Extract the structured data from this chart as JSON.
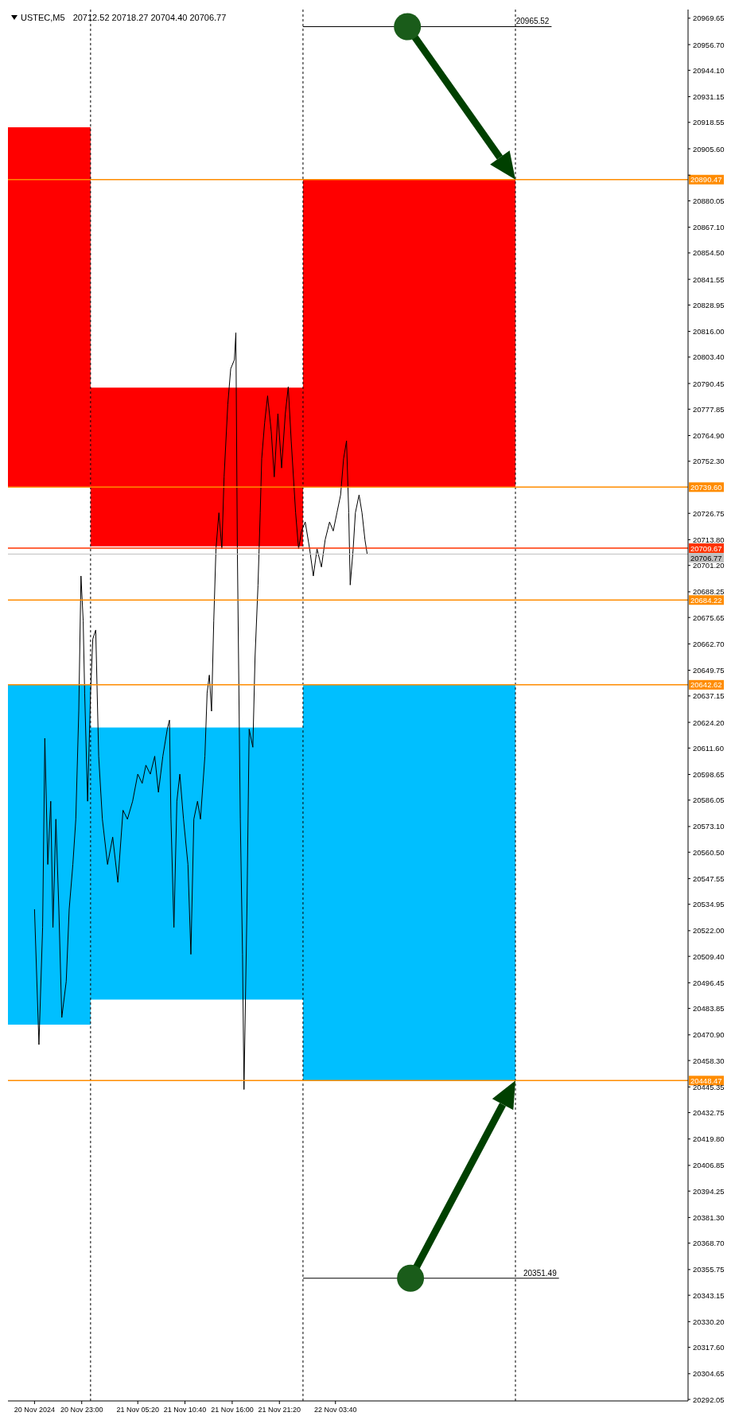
{
  "chart_data": {
    "type": "line",
    "title": "USTEC,M5",
    "subtitle": "20712.52 20718.27 20704.40 20706.77",
    "xlim": [
      "2024-11-20T14:40",
      "2024-11-23T19:30"
    ],
    "ylim": [
      20291.3,
      20973.9
    ],
    "xticks": [
      {
        "value": "2024-11-20T17:40",
        "label": "20 Nov 2024"
      },
      {
        "value": "2024-11-20T23:00",
        "label": "20 Nov 23:00"
      },
      {
        "value": "2024-11-21T05:20",
        "label": "21 Nov 05:20"
      },
      {
        "value": "2024-11-21T10:40",
        "label": "21 Nov 10:40"
      },
      {
        "value": "2024-11-21T16:00",
        "label": "21 Nov 16:00"
      },
      {
        "value": "2024-11-21T21:20",
        "label": "21 Nov 21:20"
      },
      {
        "value": "2024-11-22T03:40",
        "label": "22 Nov 03:40"
      }
    ],
    "yticks": [
      20969.65,
      {
        "value": 20956.7,
        "label": "20956.70"
      },
      {
        "value": 20944.1,
        "label": "20944.10"
      },
      20931.15,
      20918.55,
      {
        "value": 20905.6,
        "label": "20905.60"
      },
      {
        "value": 20892.65,
        "label": null
      },
      20880.05,
      {
        "value": 20867.1,
        "label": "20867.10"
      },
      {
        "value": 20854.5,
        "label": "20854.50"
      },
      20841.55,
      20828.95,
      {
        "value": 20816,
        "label": "20816.00"
      },
      {
        "value": 20803.4,
        "label": "20803.40"
      },
      20790.45,
      20777.85,
      {
        "value": 20764.9,
        "label": "20764.90"
      },
      {
        "value": 20752.3,
        "label": "20752.30"
      },
      20726.75,
      {
        "value": 20713.8,
        "label": "20713.80"
      },
      {
        "value": 20701.2,
        "label": "20701.20"
      },
      20688.25,
      20675.65,
      {
        "value": 20662.7,
        "label": "20662.70"
      },
      20649.75,
      20637.15,
      {
        "value": 20624.2,
        "label": "20624.20"
      },
      {
        "value": 20611.6,
        "label": "20611.60"
      },
      20598.65,
      20586.05,
      {
        "value": 20573.1,
        "label": "20573.10"
      },
      {
        "value": 20560.5,
        "label": "20560.50"
      },
      20547.55,
      20534.95,
      {
        "value": 20522,
        "label": "20522.00"
      },
      {
        "value": 20509.4,
        "label": "20509.40"
      },
      20496.45,
      20483.85,
      {
        "value": 20470.9,
        "label": "20470.90"
      },
      {
        "value": 20458.3,
        "label": "20458.30"
      },
      20445.35,
      20432.75,
      {
        "value": 20419.8,
        "label": "20419.80"
      },
      20406.85,
      20394.25,
      {
        "value": 20381.3,
        "label": "20381.30"
      },
      {
        "value": 20368.7,
        "label": "20368.70"
      },
      20355.75,
      20343.15,
      {
        "value": 20330.2,
        "label": "20330.20"
      },
      {
        "value": 20317.6,
        "label": "20317.60"
      },
      20304.65,
      20292.05
    ],
    "grid": false,
    "legend": false,
    "marker": "none",
    "series": [
      {
        "color": "#ff0000",
        "x": [
          "2024-11-20T14:40",
          "2024-11-21T00:00"
        ],
        "values": [
          null,
          null
        ],
        "lower": [
          20739.6,
          20739.6
        ],
        "upper": [
          20916.1,
          20916.1
        ]
      },
      {
        "color": "#ff0000",
        "x": [
          "2024-11-21T00:00",
          "2024-11-22T00:00"
        ],
        "values": [
          null,
          null
        ],
        "lower": [
          20710.6,
          20710.6
        ],
        "upper": [
          20788.4,
          20788.4
        ]
      },
      {
        "color": "#ff0000",
        "x": [
          "2024-11-22T00:00",
          "2024-11-23T00:00"
        ],
        "values": [
          null,
          null
        ],
        "lower": [
          20739.6,
          20739.6
        ],
        "upper": [
          20890.47,
          20890.47
        ]
      },
      {
        "color": "#00bfff",
        "x": [
          "2024-11-20T14:40",
          "2024-11-21T00:00"
        ],
        "values": [
          null,
          null
        ],
        "lower": [
          20475.9,
          20475.9
        ],
        "upper": [
          20642.62,
          20642.62
        ]
      },
      {
        "color": "#00bfff",
        "x": [
          "2024-11-21T00:00",
          "2024-11-22T00:00"
        ],
        "values": [
          null,
          null
        ],
        "lower": [
          20488.2,
          20488.2
        ],
        "upper": [
          20621.7,
          20621.7
        ]
      },
      {
        "color": "#00bfff",
        "x": [
          "2024-11-22T00:00",
          "2024-11-23T00:00"
        ],
        "values": [
          null,
          null
        ],
        "lower": [
          20448.47,
          20448.47
        ],
        "upper": [
          20642.62,
          20642.62
        ]
      },
      {
        "color": "#000000",
        "x": [
          "2024-11-22T00:00",
          "2024-11-23T04:05"
        ],
        "values": [
          20965.52,
          20965.52
        ],
        "value_labels": [
          null,
          "20965.52"
        ]
      },
      {
        "color": "#000000",
        "x": [
          "2024-11-22T00:00",
          "2024-11-23T04:55"
        ],
        "values": [
          20351.49,
          20351.49
        ],
        "value_labels": [
          null,
          "20351.49"
        ]
      },
      {
        "color": "#000000",
        "x": [
          "2024-11-20T17:40",
          "2024-11-20T18:10",
          "2024-11-20T18:35",
          "2024-11-20T18:50",
          "2024-11-20T19:10",
          "2024-11-20T19:30",
          "2024-11-20T19:45",
          "2024-11-20T20:05",
          "2024-11-20T20:25",
          "2024-11-20T20:45",
          "2024-11-20T21:15",
          "2024-11-20T21:35",
          "2024-11-20T22:00",
          "2024-11-20T22:20",
          "2024-11-20T22:40",
          "2024-11-20T22:55",
          "2024-11-20T23:10",
          "2024-11-20T23:20",
          "2024-11-20T23:40",
          "2024-11-21T00:00",
          "2024-11-21T00:15",
          "2024-11-21T00:35",
          "2024-11-21T00:55",
          "2024-11-21T01:20",
          "2024-11-21T01:55",
          "2024-11-21T02:30",
          "2024-11-21T03:05",
          "2024-11-21T03:40",
          "2024-11-21T04:10",
          "2024-11-21T04:45",
          "2024-11-21T05:20",
          "2024-11-21T05:50",
          "2024-11-21T06:15",
          "2024-11-21T06:45",
          "2024-11-21T07:15",
          "2024-11-21T07:40",
          "2024-11-21T08:10",
          "2024-11-21T08:40",
          "2024-11-21T08:55",
          "2024-11-21T09:05",
          "2024-11-21T09:25",
          "2024-11-21T09:45",
          "2024-11-21T10:05",
          "2024-11-21T10:30",
          "2024-11-21T11:00",
          "2024-11-21T11:20",
          "2024-11-21T11:40",
          "2024-11-21T12:05",
          "2024-11-21T12:25",
          "2024-11-21T12:55",
          "2024-11-21T13:10",
          "2024-11-21T13:25",
          "2024-11-21T13:40",
          "2024-11-21T13:55",
          "2024-11-21T14:10",
          "2024-11-21T14:30",
          "2024-11-21T14:50",
          "2024-11-21T15:05",
          "2024-11-21T15:30",
          "2024-11-21T15:50",
          "2024-11-21T16:15",
          "2024-11-21T16:25",
          "2024-11-21T16:35",
          "2024-11-21T16:55",
          "2024-11-21T17:10",
          "2024-11-21T17:20",
          "2024-11-21T17:40",
          "2024-11-21T17:55",
          "2024-11-21T18:20",
          "2024-11-21T18:35",
          "2024-11-21T18:55",
          "2024-11-21T19:10",
          "2024-11-21T19:20",
          "2024-11-21T19:40",
          "2024-11-21T20:00",
          "2024-11-21T20:25",
          "2024-11-21T20:45",
          "2024-11-21T21:10",
          "2024-11-21T21:35",
          "2024-11-21T22:00",
          "2024-11-21T22:20",
          "2024-11-21T22:40",
          "2024-11-21T23:10",
          "2024-11-21T23:30",
          "2024-11-21T23:50",
          "2024-11-22T00:15",
          "2024-11-22T00:45",
          "2024-11-22T01:10",
          "2024-11-22T01:35",
          "2024-11-22T02:05",
          "2024-11-22T02:30",
          "2024-11-22T03:00",
          "2024-11-22T03:25",
          "2024-11-22T03:50",
          "2024-11-22T04:15",
          "2024-11-22T04:35",
          "2024-11-22T04:55",
          "2024-11-22T05:10",
          "2024-11-22T05:20",
          "2024-11-22T05:40",
          "2024-11-22T05:55",
          "2024-11-22T06:20",
          "2024-11-22T06:40",
          "2024-11-22T07:00",
          "2024-11-22T07:15"
        ],
        "values": [
          20532.5,
          20466.1,
          20523.6,
          20616.4,
          20554.5,
          20585.5,
          20523.6,
          20576.7,
          20532.5,
          20479.4,
          20497.1,
          20532.5,
          20554.5,
          20576.7,
          20629.7,
          20696,
          20673.9,
          20638.6,
          20585.5,
          20638.6,
          20665.1,
          20669.5,
          20607.6,
          20576.7,
          20554.5,
          20567.9,
          20545.7,
          20581.1,
          20576.7,
          20585.5,
          20598.8,
          20594.3,
          20603.2,
          20598.8,
          20607.6,
          20589.9,
          20607.6,
          20620.9,
          20625.3,
          20576.7,
          20523.6,
          20585.5,
          20598.8,
          20576.7,
          20554.5,
          20510.4,
          20576.7,
          20585.5,
          20576.7,
          20607.6,
          20638.6,
          20647.4,
          20629.7,
          20673.9,
          20709.3,
          20727,
          20709.3,
          20744.6,
          20780,
          20797.7,
          20802.1,
          20815.3,
          20709.3,
          20576.7,
          20510.4,
          20444.1,
          20532.5,
          20620.9,
          20612,
          20656.2,
          20691.6,
          20727,
          20753.5,
          20771.2,
          20784.4,
          20766.7,
          20744.6,
          20775.6,
          20749,
          20775.6,
          20788.8,
          20762.3,
          20727,
          20709.3,
          20718.1,
          20722.5,
          20709.3,
          20696,
          20709.3,
          20700.4,
          20713.7,
          20722.5,
          20718.1,
          20727,
          20735.8,
          20753.5,
          20762.3,
          20727,
          20691.6,
          20709.3,
          20727,
          20735.8,
          20727,
          20713.7,
          20706.77
        ]
      }
    ],
    "ref_lines": [
      {
        "axis": "x",
        "value": "2024-11-21T00:00",
        "color": "#000000",
        "line_style": "dashed"
      },
      {
        "axis": "x",
        "value": "2024-11-22T00:00",
        "color": "#000000",
        "line_style": "dashed"
      },
      {
        "axis": "x",
        "value": "2024-11-23T00:00",
        "color": "#000000",
        "line_style": "dashed"
      },
      {
        "axis": "y",
        "value": 20890.47,
        "label": "20890.47",
        "color": "#ff8c00"
      },
      {
        "axis": "y",
        "value": 20739.6,
        "label": "20739.60",
        "color": "#ff8c00"
      },
      {
        "axis": "y",
        "value": 20709.67,
        "label": "20709.67",
        "color": "#ff3300"
      },
      {
        "axis": "y",
        "value": 20706.77,
        "label": "20706.77",
        "color": "#c0c0c0"
      },
      {
        "axis": "y",
        "value": 20684.22,
        "label": "20684.22",
        "color": "#ff8c00"
      },
      {
        "axis": "y",
        "value": 20642.62,
        "label": "20642.62",
        "color": "#ff8c00"
      },
      {
        "axis": "y",
        "value": 20448.47,
        "label": "20448.47",
        "color": "#ff8c00"
      }
    ]
  }
}
